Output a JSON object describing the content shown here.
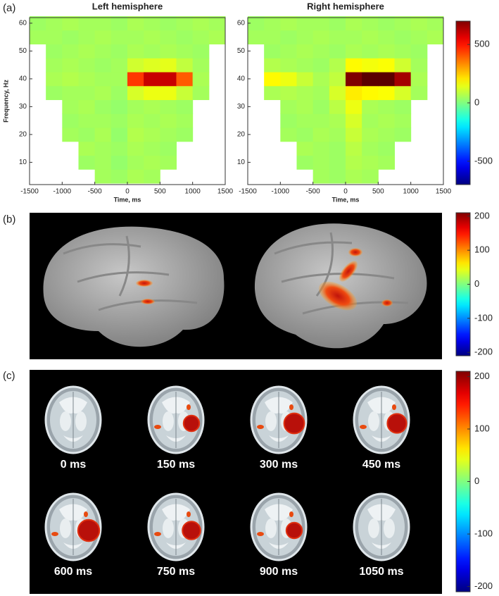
{
  "panel_labels": [
    "(a)",
    "(b)",
    "(c)"
  ],
  "chart_data": [
    {
      "type": "heatmap",
      "title": "Left hemisphere",
      "xlabel": "Time, ms",
      "ylabel": "Frequency, Hz",
      "x": [
        -1375,
        -1125,
        -875,
        -625,
        -375,
        -125,
        125,
        375,
        625,
        875,
        1125,
        1375
      ],
      "y": [
        5,
        10,
        15,
        20,
        25,
        30,
        35,
        40,
        45,
        50,
        55,
        60
      ],
      "z": [
        [
          null,
          null,
          null,
          null,
          50,
          40,
          60,
          50,
          null,
          null,
          null,
          null
        ],
        [
          null,
          null,
          null,
          40,
          50,
          30,
          50,
          60,
          50,
          null,
          null,
          null
        ],
        [
          null,
          null,
          null,
          60,
          50,
          40,
          60,
          50,
          40,
          null,
          null,
          null
        ],
        [
          null,
          null,
          50,
          40,
          60,
          30,
          70,
          60,
          50,
          40,
          null,
          null
        ],
        [
          null,
          null,
          40,
          50,
          50,
          40,
          60,
          50,
          60,
          50,
          null,
          null
        ],
        [
          null,
          null,
          50,
          60,
          40,
          30,
          50,
          60,
          50,
          40,
          null,
          null
        ],
        [
          null,
          40,
          50,
          50,
          60,
          40,
          120,
          150,
          150,
          100,
          50,
          null
        ],
        [
          null,
          60,
          70,
          60,
          50,
          50,
          450,
          600,
          600,
          400,
          60,
          null
        ],
        [
          null,
          50,
          60,
          50,
          40,
          50,
          110,
          130,
          140,
          90,
          50,
          null
        ],
        [
          null,
          40,
          50,
          60,
          50,
          40,
          60,
          50,
          60,
          50,
          40,
          null
        ],
        [
          50,
          50,
          40,
          50,
          60,
          50,
          50,
          60,
          50,
          40,
          50,
          60
        ],
        [
          40,
          50,
          60,
          50,
          50,
          40,
          60,
          50,
          40,
          50,
          60,
          50
        ]
      ],
      "xlim": [
        -1500,
        1500
      ],
      "xticks": [
        -1500,
        -1000,
        -500,
        0,
        500,
        1000,
        1500
      ],
      "ylim": [
        2,
        62
      ],
      "yticks": [
        10,
        20,
        30,
        40,
        50,
        60
      ]
    },
    {
      "type": "heatmap",
      "title": "Right hemisphere",
      "xlabel": "Time, ms",
      "x": [
        -1375,
        -1125,
        -875,
        -625,
        -375,
        -125,
        125,
        375,
        625,
        875,
        1125,
        1375
      ],
      "y": [
        5,
        10,
        15,
        20,
        25,
        30,
        35,
        40,
        45,
        50,
        55,
        60
      ],
      "z": [
        [
          null,
          null,
          null,
          null,
          50,
          40,
          60,
          50,
          null,
          null,
          null,
          null
        ],
        [
          null,
          null,
          null,
          40,
          50,
          40,
          70,
          60,
          50,
          null,
          null,
          null
        ],
        [
          null,
          null,
          null,
          60,
          50,
          40,
          80,
          50,
          40,
          null,
          null,
          null
        ],
        [
          null,
          null,
          50,
          40,
          60,
          50,
          100,
          60,
          50,
          40,
          null,
          null
        ],
        [
          null,
          null,
          40,
          50,
          50,
          60,
          120,
          50,
          60,
          50,
          null,
          null
        ],
        [
          null,
          null,
          50,
          60,
          40,
          80,
          150,
          60,
          50,
          40,
          null,
          null
        ],
        [
          null,
          60,
          70,
          60,
          50,
          120,
          200,
          180,
          170,
          120,
          50,
          null
        ],
        [
          null,
          180,
          150,
          100,
          60,
          90,
          700,
          750,
          750,
          650,
          60,
          null
        ],
        [
          null,
          70,
          60,
          50,
          40,
          70,
          180,
          160,
          170,
          110,
          50,
          null
        ],
        [
          null,
          40,
          50,
          60,
          50,
          40,
          60,
          50,
          60,
          50,
          40,
          null
        ],
        [
          50,
          50,
          40,
          50,
          60,
          50,
          50,
          60,
          50,
          40,
          50,
          60
        ],
        [
          40,
          50,
          60,
          50,
          50,
          40,
          60,
          50,
          40,
          50,
          60,
          50
        ]
      ],
      "xlim": [
        -1500,
        1500
      ],
      "xticks": [
        -1500,
        -1000,
        -500,
        0,
        500,
        1000,
        1500
      ],
      "ylim": [
        2,
        62
      ],
      "yticks": [
        10,
        20,
        30,
        40,
        50,
        60
      ]
    }
  ],
  "colorbars": [
    {
      "clim": [
        -700,
        700
      ],
      "ticks": [
        -500,
        0,
        500
      ]
    },
    {
      "clim": [
        -210,
        210
      ],
      "ticks": [
        -200,
        -100,
        0,
        100,
        200
      ]
    },
    {
      "clim": [
        -210,
        210
      ],
      "ticks": [
        -200,
        -100,
        0,
        100,
        200
      ]
    }
  ],
  "time_labels": [
    "0 ms",
    "150 ms",
    "300 ms",
    "450 ms",
    "600 ms",
    "750 ms",
    "900 ms",
    "1050 ms"
  ]
}
